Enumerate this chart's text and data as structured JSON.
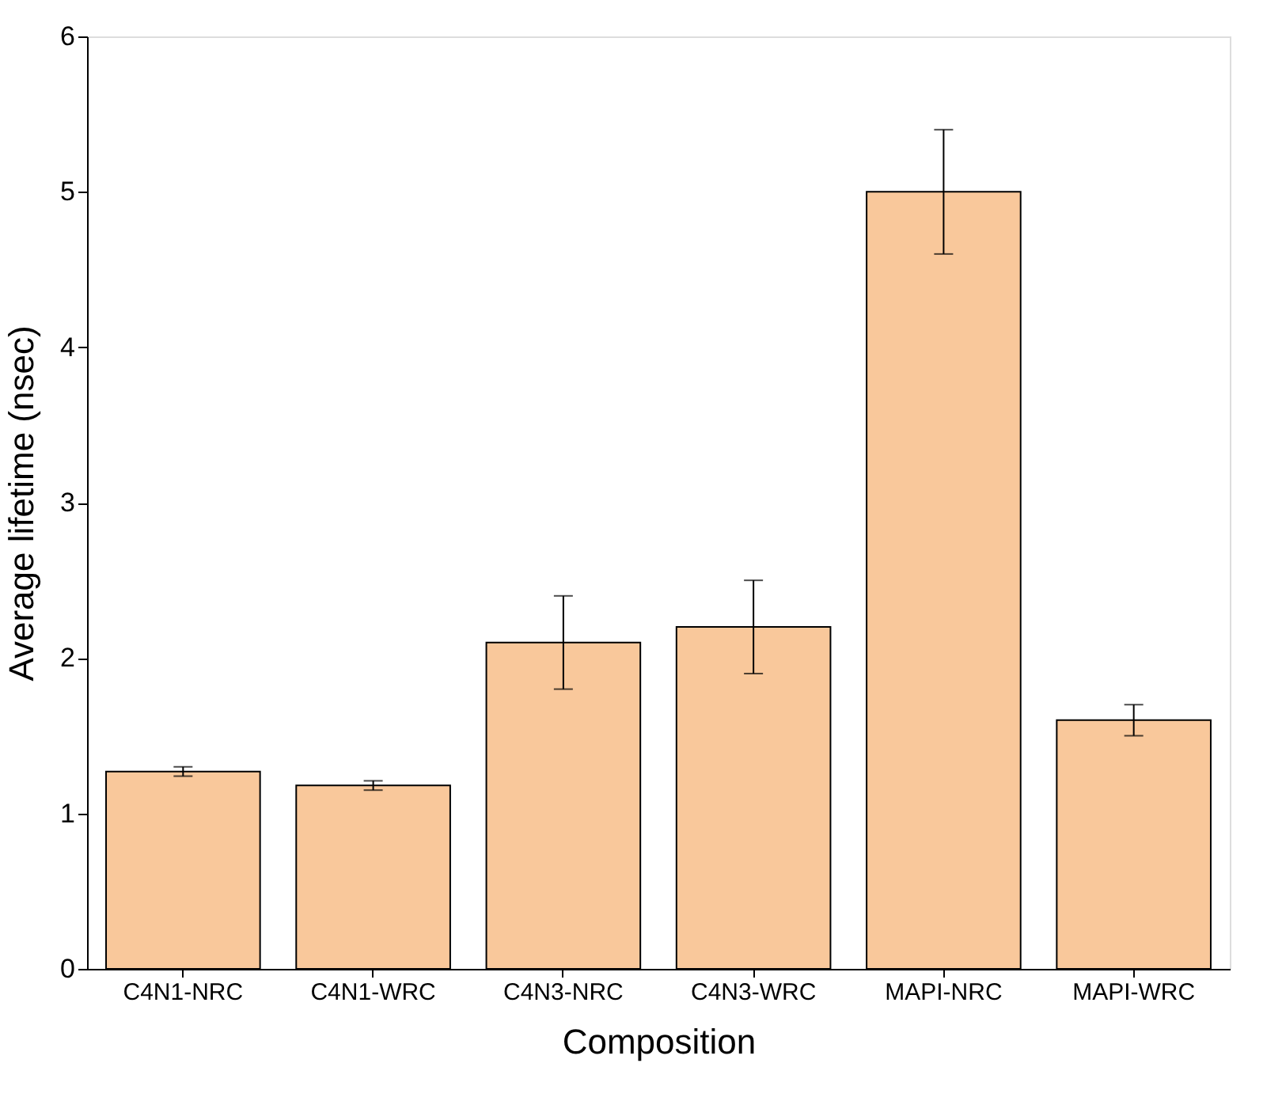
{
  "chart_data": {
    "type": "bar",
    "xlabel": "Composition",
    "ylabel": "Average lifetime (nsec)",
    "categories": [
      "C4N1-NRC",
      "C4N1-WRC",
      "C4N3-NRC",
      "C4N3-WRC",
      "MAPI-NRC",
      "MAPI-WRC"
    ],
    "values": [
      1.27,
      1.18,
      2.1,
      2.2,
      5.0,
      1.6
    ],
    "errors": [
      0.03,
      0.03,
      0.3,
      0.3,
      0.4,
      0.1
    ],
    "color": "#f9c89b",
    "ylim": [
      0,
      6
    ],
    "yticks": [
      0,
      1,
      2,
      3,
      4,
      5,
      6
    ],
    "grid": false
  }
}
